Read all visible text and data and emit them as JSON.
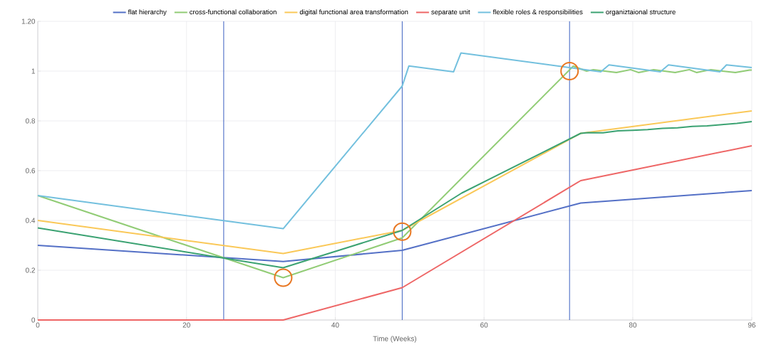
{
  "chart_data": {
    "type": "line",
    "xlabel": "Time (Weeks)",
    "xlim": [
      0,
      96
    ],
    "ylim": [
      0,
      1.2
    ],
    "xticks": [
      0,
      20,
      40,
      60,
      80,
      96
    ],
    "yticks": [
      0,
      0.2,
      0.4,
      0.6,
      0.8,
      1,
      {
        "value": 1.2,
        "label": "1.20"
      }
    ],
    "grid": true,
    "legend": "top",
    "marker": "none",
    "line_style": "solid",
    "series": [
      {
        "name": "flat hierarchy",
        "color": "#5470c6",
        "x": [
          0,
          33,
          49,
          73,
          96
        ],
        "values": [
          0.3,
          0.235,
          0.28,
          0.47,
          0.52
        ]
      },
      {
        "name": "cross-functional collaboration",
        "color": "#91cc75",
        "x": [
          0,
          33,
          49,
          72,
          73.8,
          74.7,
          77.8,
          79.7,
          80.8,
          82.8,
          85.7,
          87.6,
          88.6,
          90.5,
          93.8,
          95.7,
          96
        ],
        "values": [
          0.5,
          0.17,
          0.33,
          1.02,
          1.0,
          1.006,
          0.994,
          1.006,
          0.994,
          1.006,
          0.994,
          1.006,
          0.994,
          1.006,
          0.994,
          1.004,
          1.004
        ]
      },
      {
        "name": "digital functional area transformation",
        "color": "#fac858",
        "x": [
          0,
          33,
          49,
          73,
          96
        ],
        "values": [
          0.4,
          0.267,
          0.36,
          0.75,
          0.84
        ]
      },
      {
        "name": "separate unit",
        "color": "#ee6666",
        "x": [
          0,
          33,
          49,
          73,
          96
        ],
        "values": [
          0,
          0,
          0.13,
          0.56,
          0.7
        ]
      },
      {
        "name": "flexible roles & responsibilities",
        "color": "#73c0de",
        "x": [
          0,
          33,
          49,
          49.9,
          55.9,
          56.9,
          75.7,
          76.8,
          83.7,
          84.8,
          91.7,
          92.6,
          96
        ],
        "values": [
          0.5,
          0.367,
          0.94,
          1.021,
          0.997,
          1.073,
          0.997,
          1.025,
          0.997,
          1.025,
          0.997,
          1.025,
          1.014
        ]
      },
      {
        "name": "organiztaional structure",
        "color": "#3ba272",
        "x": [
          0,
          33,
          49,
          57,
          73,
          74,
          76,
          78,
          80,
          82,
          84,
          86,
          88,
          90,
          92,
          94,
          96
        ],
        "values": [
          0.37,
          0.21,
          0.36,
          0.51,
          0.75,
          0.753,
          0.752,
          0.76,
          0.762,
          0.765,
          0.77,
          0.772,
          0.778,
          0.78,
          0.785,
          0.79,
          0.797
        ]
      },
      {
        "type": "scatter",
        "marker": "circle",
        "color": "#e87722",
        "x": [
          33,
          49,
          71.5
        ],
        "values": [
          0.17,
          0.355,
          1.0
        ]
      }
    ],
    "ref_lines": [
      {
        "axis": "x",
        "value": 25,
        "color": "#3b5fc0"
      },
      {
        "axis": "x",
        "value": 49,
        "color": "#3b5fc0"
      },
      {
        "axis": "x",
        "value": 71.5,
        "color": "#3b5fc0"
      }
    ]
  }
}
